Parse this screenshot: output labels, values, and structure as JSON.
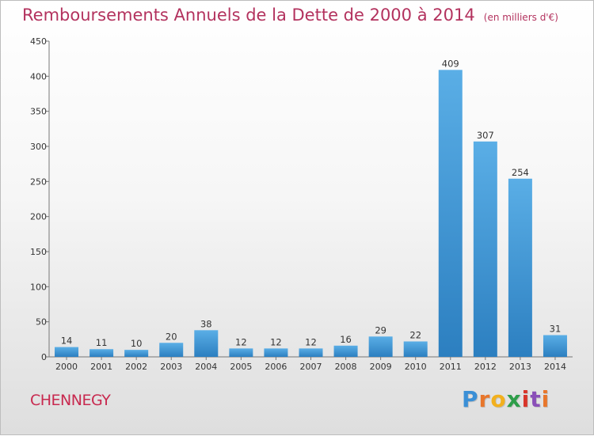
{
  "header": {
    "title": "Remboursements Annuels de la Dette de 2000 à 2014",
    "unit": "(en milliers d'€)"
  },
  "footer": {
    "commune": "CHENNEGY",
    "brand_letters": [
      {
        "ch": "P",
        "color": "#3a8fd6"
      },
      {
        "ch": "r",
        "color": "#e8762b"
      },
      {
        "ch": "o",
        "color": "#f2b01e"
      },
      {
        "ch": "x",
        "color": "#2e9e4a"
      },
      {
        "ch": "i",
        "color": "#d8352a"
      },
      {
        "ch": "t",
        "color": "#8a4fb8"
      },
      {
        "ch": "i",
        "color": "#e8762b"
      }
    ]
  },
  "chart_data": {
    "type": "bar",
    "title": "Remboursements Annuels de la Dette de 2000 à 2014",
    "xlabel": "",
    "ylabel": "",
    "categories": [
      "2000",
      "2001",
      "2002",
      "2003",
      "2004",
      "2005",
      "2006",
      "2007",
      "2008",
      "2009",
      "2010",
      "2011",
      "2012",
      "2013",
      "2014"
    ],
    "values": [
      14,
      11,
      10,
      20,
      38,
      12,
      12,
      12,
      16,
      29,
      22,
      409,
      307,
      254,
      31
    ],
    "value_labels": [
      "14",
      "11",
      "10",
      "20",
      "38",
      "12",
      "12",
      "12",
      "16",
      "29",
      "22",
      "409",
      "307",
      "254",
      "31"
    ],
    "ylim": [
      0,
      450
    ],
    "yticks": [
      0,
      50,
      100,
      150,
      200,
      250,
      300,
      350,
      400,
      450
    ],
    "ytick_labels": [
      "0",
      "50",
      "100",
      "150",
      "200",
      "250",
      "300",
      "350",
      "400",
      "450"
    ],
    "grid": false,
    "legend": "none",
    "bar_color_top": "#5aaee6",
    "bar_color_bottom": "#2c7fc0"
  }
}
